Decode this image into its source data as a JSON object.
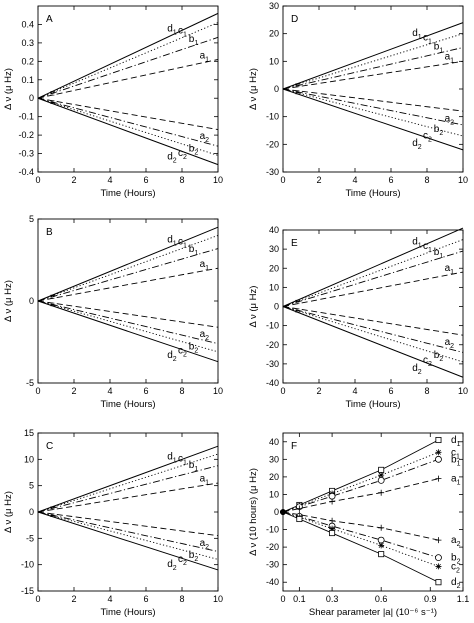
{
  "chart_data": [
    {
      "type": "line",
      "panel": "A",
      "xlabel": "Time (Hours)",
      "ylabel": "Δ ν (μ Hz)",
      "xlim": [
        0,
        10
      ],
      "ylim": [
        -0.4,
        0.5
      ],
      "xticks": [
        0,
        2,
        4,
        6,
        8,
        10
      ],
      "yticks": [
        -0.4,
        -0.3,
        -0.2,
        -0.1,
        0,
        0.1,
        0.2,
        0.3,
        0.4
      ],
      "ytick_labels": [
        "-0.4",
        "-0.3",
        "-0.2",
        "-0.1",
        "0",
        "0.1",
        "0.2",
        "0.3",
        "0.4"
      ],
      "series": [
        {
          "name": "d1",
          "label": "d",
          "sub": "1",
          "style": "solid",
          "x": [
            0,
            10
          ],
          "y": [
            0,
            0.46
          ]
        },
        {
          "name": "c1",
          "label": "c",
          "sub": "1",
          "style": "dotted",
          "x": [
            0,
            10
          ],
          "y": [
            0,
            0.41
          ]
        },
        {
          "name": "b1",
          "label": "b",
          "sub": "1",
          "style": "dashdot",
          "x": [
            0,
            10
          ],
          "y": [
            0,
            0.33
          ]
        },
        {
          "name": "a1",
          "label": "a",
          "sub": "1",
          "style": "dashed",
          "x": [
            0,
            10
          ],
          "y": [
            0,
            0.21
          ]
        },
        {
          "name": "a2",
          "label": "a",
          "sub": "2",
          "style": "dashed",
          "x": [
            0,
            10
          ],
          "y": [
            0,
            -0.17
          ]
        },
        {
          "name": "b2",
          "label": "b",
          "sub": "2",
          "style": "dashdot",
          "x": [
            0,
            10
          ],
          "y": [
            0,
            -0.26
          ]
        },
        {
          "name": "c2",
          "label": "c",
          "sub": "2",
          "style": "dotted",
          "x": [
            0,
            10
          ],
          "y": [
            0,
            -0.31
          ]
        },
        {
          "name": "d2",
          "label": "d",
          "sub": "2",
          "style": "solid",
          "x": [
            0,
            10
          ],
          "y": [
            0,
            -0.36
          ]
        }
      ]
    },
    {
      "type": "line",
      "panel": "D",
      "xlabel": "Time (Hours)",
      "ylabel": "Δ ν (μ Hz)",
      "xlim": [
        0,
        10
      ],
      "ylim": [
        -30,
        30
      ],
      "xticks": [
        0,
        2,
        4,
        6,
        8,
        10
      ],
      "yticks": [
        -30,
        -20,
        -10,
        0,
        10,
        20,
        30
      ],
      "ytick_labels": [
        "-30",
        "-20",
        "-10",
        "0",
        "10",
        "20",
        "30"
      ],
      "series": [
        {
          "name": "d1",
          "label": "d",
          "sub": "1",
          "style": "solid",
          "x": [
            0,
            10
          ],
          "y": [
            0,
            24
          ]
        },
        {
          "name": "c1",
          "label": "c",
          "sub": "1",
          "style": "dotted",
          "x": [
            0,
            10
          ],
          "y": [
            0,
            20
          ]
        },
        {
          "name": "b1",
          "label": "b",
          "sub": "1",
          "style": "dashdot",
          "x": [
            0,
            10
          ],
          "y": [
            0,
            15
          ]
        },
        {
          "name": "a1",
          "label": "a",
          "sub": "1",
          "style": "dashed",
          "x": [
            0,
            10
          ],
          "y": [
            0,
            10
          ]
        },
        {
          "name": "a2",
          "label": "a",
          "sub": "2",
          "style": "dashed",
          "x": [
            0,
            10
          ],
          "y": [
            0,
            -8
          ]
        },
        {
          "name": "b2",
          "label": "b",
          "sub": "2",
          "style": "dashdot",
          "x": [
            0,
            10
          ],
          "y": [
            0,
            -13
          ]
        },
        {
          "name": "c2",
          "label": "c",
          "sub": "2",
          "style": "dotted",
          "x": [
            0,
            10
          ],
          "y": [
            0,
            -17
          ]
        },
        {
          "name": "d2",
          "label": "d",
          "sub": "2",
          "style": "solid",
          "x": [
            0,
            10
          ],
          "y": [
            0,
            -22
          ]
        }
      ]
    },
    {
      "type": "line",
      "panel": "B",
      "xlabel": "Time (Hours)",
      "ylabel": "Δ ν (μ Hz)",
      "xlim": [
        0,
        10
      ],
      "ylim": [
        -5,
        5
      ],
      "xticks": [
        0,
        2,
        4,
        6,
        8,
        10
      ],
      "yticks": [
        -5,
        0,
        5
      ],
      "ytick_labels": [
        "-5",
        "0",
        "5"
      ],
      "series": [
        {
          "name": "d1",
          "label": "d",
          "sub": "1",
          "style": "solid",
          "x": [
            0,
            10
          ],
          "y": [
            0,
            4.5
          ]
        },
        {
          "name": "c1",
          "label": "c",
          "sub": "1",
          "style": "dotted",
          "x": [
            0,
            10
          ],
          "y": [
            0,
            4.0
          ]
        },
        {
          "name": "b1",
          "label": "b",
          "sub": "1",
          "style": "dashdot",
          "x": [
            0,
            10
          ],
          "y": [
            0,
            3.2
          ]
        },
        {
          "name": "a1",
          "label": "a",
          "sub": "1",
          "style": "dashed",
          "x": [
            0,
            10
          ],
          "y": [
            0,
            2.0
          ]
        },
        {
          "name": "a2",
          "label": "a",
          "sub": "2",
          "style": "dashed",
          "x": [
            0,
            10
          ],
          "y": [
            0,
            -1.6
          ]
        },
        {
          "name": "b2",
          "label": "b",
          "sub": "2",
          "style": "dashdot",
          "x": [
            0,
            10
          ],
          "y": [
            0,
            -2.6
          ]
        },
        {
          "name": "c2",
          "label": "c",
          "sub": "2",
          "style": "dotted",
          "x": [
            0,
            10
          ],
          "y": [
            0,
            -3.1
          ]
        },
        {
          "name": "d2",
          "label": "d",
          "sub": "2",
          "style": "solid",
          "x": [
            0,
            10
          ],
          "y": [
            0,
            -3.7
          ]
        }
      ]
    },
    {
      "type": "line",
      "panel": "E",
      "xlabel": "Time (Hours)",
      "ylabel": "Δ ν (μ Hz)",
      "xlim": [
        0,
        10
      ],
      "ylim": [
        -40,
        40
      ],
      "xticks": [
        0,
        2,
        4,
        6,
        8,
        10
      ],
      "yticks": [
        -40,
        -30,
        -20,
        -10,
        0,
        10,
        20,
        30,
        40
      ],
      "ytick_labels": [
        "-40",
        "-30",
        "-20",
        "-10",
        "0",
        "10",
        "20",
        "30",
        "40"
      ],
      "series": [
        {
          "name": "d1",
          "label": "d",
          "sub": "1",
          "style": "solid",
          "x": [
            0,
            10
          ],
          "y": [
            0,
            41
          ]
        },
        {
          "name": "c1",
          "label": "c",
          "sub": "1",
          "style": "dotted",
          "x": [
            0,
            10
          ],
          "y": [
            0,
            35
          ]
        },
        {
          "name": "b1",
          "label": "b",
          "sub": "1",
          "style": "dashdot",
          "x": [
            0,
            10
          ],
          "y": [
            0,
            29
          ]
        },
        {
          "name": "a1",
          "label": "a",
          "sub": "1",
          "style": "dashed",
          "x": [
            0,
            10
          ],
          "y": [
            0,
            18
          ]
        },
        {
          "name": "a2",
          "label": "a",
          "sub": "2",
          "style": "dashed",
          "x": [
            0,
            10
          ],
          "y": [
            0,
            -15
          ]
        },
        {
          "name": "b2",
          "label": "b",
          "sub": "2",
          "style": "dashdot",
          "x": [
            0,
            10
          ],
          "y": [
            0,
            -24
          ]
        },
        {
          "name": "c2",
          "label": "c",
          "sub": "2",
          "style": "dotted",
          "x": [
            0,
            10
          ],
          "y": [
            0,
            -29
          ]
        },
        {
          "name": "d2",
          "label": "d",
          "sub": "2",
          "style": "solid",
          "x": [
            0,
            10
          ],
          "y": [
            0,
            -37
          ]
        }
      ]
    },
    {
      "type": "line",
      "panel": "C",
      "xlabel": "Time (Hours)",
      "ylabel": "Δ ν (μ Hz)",
      "xlim": [
        0,
        10
      ],
      "ylim": [
        -15,
        15
      ],
      "xticks": [
        0,
        2,
        4,
        6,
        8,
        10
      ],
      "yticks": [
        -15,
        -10,
        -5,
        0,
        5,
        10,
        15
      ],
      "ytick_labels": [
        "-15",
        "-10",
        "-5",
        "0",
        "5",
        "10",
        "15"
      ],
      "series": [
        {
          "name": "d1",
          "label": "d",
          "sub": "1",
          "style": "solid",
          "x": [
            0,
            10
          ],
          "y": [
            0,
            12.5
          ]
        },
        {
          "name": "c1",
          "label": "c",
          "sub": "1",
          "style": "dotted",
          "x": [
            0,
            10
          ],
          "y": [
            0,
            11
          ]
        },
        {
          "name": "b1",
          "label": "b",
          "sub": "1",
          "style": "dashdot",
          "x": [
            0,
            10
          ],
          "y": [
            0,
            8.8
          ]
        },
        {
          "name": "a1",
          "label": "a",
          "sub": "1",
          "style": "dashed",
          "x": [
            0,
            10
          ],
          "y": [
            0,
            5.5
          ]
        },
        {
          "name": "a2",
          "label": "a",
          "sub": "2",
          "style": "dashed",
          "x": [
            0,
            10
          ],
          "y": [
            0,
            -4.5
          ]
        },
        {
          "name": "b2",
          "label": "b",
          "sub": "2",
          "style": "dashdot",
          "x": [
            0,
            10
          ],
          "y": [
            0,
            -7.5
          ]
        },
        {
          "name": "c2",
          "label": "c",
          "sub": "2",
          "style": "dotted",
          "x": [
            0,
            10
          ],
          "y": [
            0,
            -9
          ]
        },
        {
          "name": "d2",
          "label": "d",
          "sub": "2",
          "style": "solid",
          "x": [
            0,
            10
          ],
          "y": [
            0,
            -11
          ]
        }
      ]
    },
    {
      "type": "scatter",
      "panel": "F",
      "xlabel": "Shear parameter |a|  (10⁻⁶ s⁻¹)",
      "ylabel": "Δ ν (10 hours) (μ Hz)",
      "xlim": [
        0,
        1.1
      ],
      "ylim": [
        -45,
        45
      ],
      "xticks": [
        0,
        0.1,
        0.3,
        0.6,
        0.9,
        1.1
      ],
      "yticks": [
        -40,
        -30,
        -20,
        -10,
        0,
        10,
        20,
        30,
        40
      ],
      "xtick_labels": [
        "0",
        "0.1",
        "0.3",
        "0.6",
        "0.9",
        "1.1"
      ],
      "ytick_labels": [
        "-40",
        "-30",
        "-20",
        "-10",
        "0",
        "10",
        "20",
        "30",
        "40"
      ],
      "x": [
        0,
        0.1,
        0.3,
        0.6,
        0.95
      ],
      "series": [
        {
          "name": "d1",
          "label": "d",
          "sub": "1",
          "style": "solid",
          "marker": "square",
          "y": [
            0,
            4,
            12,
            24,
            41
          ]
        },
        {
          "name": "c1",
          "label": "c",
          "sub": "1",
          "style": "dotted",
          "marker": "star",
          "y": [
            0,
            3.5,
            10.5,
            21,
            34
          ]
        },
        {
          "name": "b1",
          "label": "b",
          "sub": "1",
          "style": "dashdot",
          "marker": "circle",
          "y": [
            0,
            3,
            9,
            18,
            30
          ]
        },
        {
          "name": "a1",
          "label": "a",
          "sub": "1",
          "style": "dashed",
          "marker": "plus",
          "y": [
            0,
            2,
            6,
            11,
            19
          ]
        },
        {
          "name": "a2",
          "label": "a",
          "sub": "2",
          "style": "dashed",
          "marker": "plus",
          "y": [
            0,
            -1.5,
            -5,
            -9,
            -16
          ]
        },
        {
          "name": "b2",
          "label": "b",
          "sub": "2",
          "style": "dashdot",
          "marker": "circle",
          "y": [
            0,
            -2.5,
            -8,
            -16,
            -26
          ]
        },
        {
          "name": "c2",
          "label": "c",
          "sub": "2",
          "style": "dotted",
          "marker": "star",
          "y": [
            0,
            -3,
            -9.5,
            -19,
            -31
          ]
        },
        {
          "name": "d2",
          "label": "d",
          "sub": "2",
          "style": "solid",
          "marker": "square",
          "y": [
            0,
            -4,
            -12,
            -24,
            -40
          ]
        }
      ]
    }
  ]
}
